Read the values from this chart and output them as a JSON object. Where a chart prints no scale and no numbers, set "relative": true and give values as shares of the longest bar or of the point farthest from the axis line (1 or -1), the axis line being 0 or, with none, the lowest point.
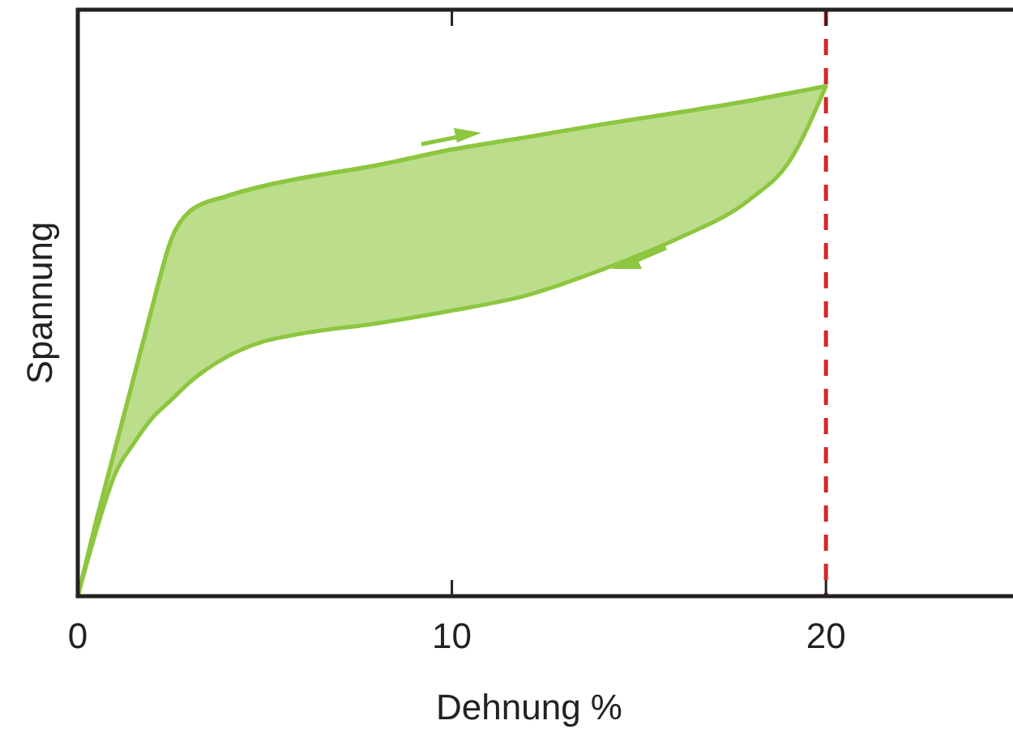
{
  "chart_data": {
    "type": "line",
    "xlabel": "Dehnung %",
    "ylabel": "Spannung",
    "relative": true,
    "x": [
      0,
      0.5,
      1,
      1.5,
      2,
      2.5,
      3,
      4,
      5,
      6,
      8,
      10,
      12,
      14,
      16,
      18,
      19,
      20
    ],
    "xlim": [
      0,
      25
    ],
    "xticks": [
      0,
      10,
      20
    ],
    "grid": false,
    "legend": false,
    "marker": "none",
    "line_style": "solid",
    "series": [
      {
        "color": "#8dc63f",
        "values": [
          0,
          0.15,
          0.29,
          0.43,
          0.57,
          0.7,
          0.755,
          0.785,
          0.805,
          0.82,
          0.845,
          0.876,
          0.9,
          0.925,
          0.948,
          0.972,
          0.986,
          1
        ],
        "upper": [
          0,
          0.15,
          0.29,
          0.43,
          0.57,
          0.7,
          0.755,
          0.785,
          0.805,
          0.82,
          0.845,
          0.876,
          0.9,
          0.925,
          0.948,
          0.972,
          0.986,
          1
        ],
        "lower": [
          0,
          0.13,
          0.24,
          0.3,
          0.35,
          0.385,
          0.42,
          0.47,
          0.5,
          0.515,
          0.535,
          0.56,
          0.59,
          0.64,
          0.7,
          0.78,
          0.85,
          1
        ]
      }
    ],
    "ref_lines": [
      {
        "axis": "x",
        "value": 20,
        "color": "#d62728",
        "line_style": "dashed"
      }
    ]
  }
}
